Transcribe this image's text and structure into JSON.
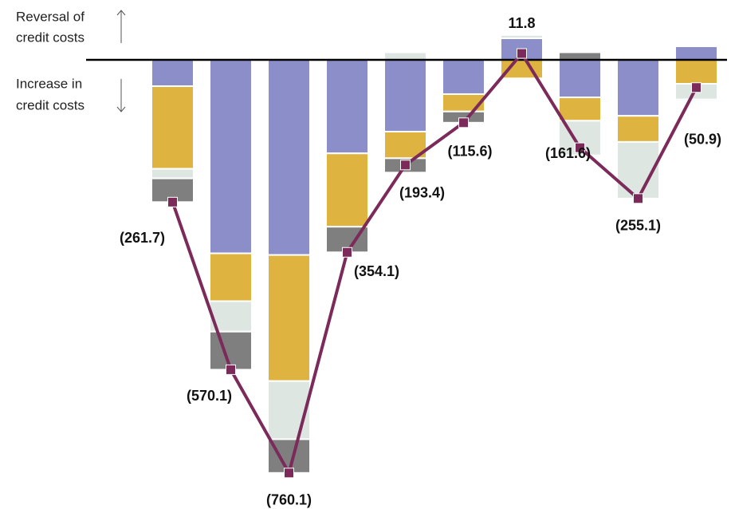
{
  "chart_data": {
    "type": "stacked-bar-line",
    "annotations": [
      [
        "Reversal of",
        "credit costs"
      ],
      [
        "Increase in",
        "credit costs"
      ]
    ],
    "categories": [
      null,
      null,
      null,
      null,
      null,
      null,
      null,
      null,
      null,
      null
    ],
    "ylim": [
      -800,
      50
    ],
    "series": [
      {
        "color": "#8b8ec8",
        "values": [
          -48.4,
          -356,
          -359,
          -172,
          -132,
          -63,
          39.8,
          -69,
          -103,
          25
        ]
      },
      {
        "color": "#dfb33f",
        "values": [
          -152,
          -88,
          -232,
          -135,
          -49,
          -32,
          -34,
          -43,
          -48,
          -44
        ]
      },
      {
        "color": "#dde6e0",
        "values": [
          -17.6,
          -56,
          -107,
          0,
          14,
          0,
          6,
          -63.6,
          -104.1,
          -28.9
        ]
      },
      {
        "color": "#7f7f7f",
        "values": [
          -43.7,
          -70.1,
          -62.1,
          -47.1,
          -26.4,
          -20.6,
          0,
          14,
          0,
          -3
        ]
      }
    ],
    "total": {
      "color": "#7b2a5a",
      "values": [
        -261.7,
        -570.1,
        -760.1,
        -354.1,
        -193.4,
        -115.6,
        11.8,
        -161.6,
        -255.1,
        -50.9
      ],
      "value_labels": [
        "(261.7)",
        "(570.1)",
        "(760.1)",
        "(354.1)",
        "(193.4)",
        "(115.6)",
        "11.8",
        "(161.6)",
        "(255.1)",
        "(50.9)"
      ]
    }
  }
}
